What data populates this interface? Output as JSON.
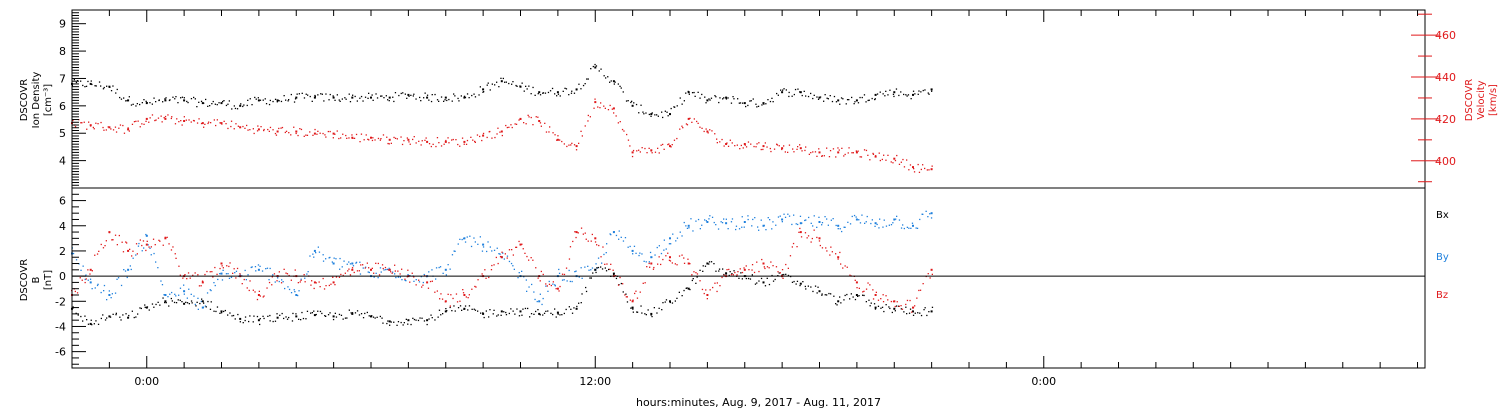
{
  "colors": {
    "black": "#000000",
    "red": "#e0191b",
    "blue": "#1f80dd"
  },
  "chart_data": [
    {
      "type": "scatter",
      "panel": "top",
      "ylabel": [
        "DSCOVR",
        "Ion Density",
        "[cm⁻³]"
      ],
      "y2label": [
        "DSCOVR",
        "Velocity",
        "[km/s]"
      ],
      "ylim": [
        3,
        9.5
      ],
      "y2lim": [
        387,
        472
      ],
      "yticks": [
        "4",
        "5",
        "6",
        "7",
        "8",
        "9"
      ],
      "y2ticks": [
        "400",
        "420",
        "440",
        "460"
      ],
      "series": [
        {
          "axis": "left",
          "color": "black",
          "x": [
            -2,
            -1.5,
            -1,
            -0.5,
            0,
            0.5,
            1,
            1.5,
            2,
            2.5,
            3,
            3.5,
            4,
            4.5,
            5,
            5.5,
            6,
            6.5,
            7,
            7.5,
            8,
            8.5,
            9,
            9.5,
            10,
            10.5,
            11,
            11.5,
            12,
            12.5,
            13,
            13.5,
            14,
            14.5,
            15,
            15.5,
            16,
            16.5,
            17,
            17.5,
            18,
            18.5,
            19,
            19.5,
            20,
            20.5,
            21
          ],
          "values": [
            6.8,
            6.8,
            6.7,
            6.2,
            6.1,
            6.2,
            6.2,
            6.1,
            6.1,
            6.0,
            6.2,
            6.2,
            6.3,
            6.3,
            6.3,
            6.3,
            6.3,
            6.3,
            6.4,
            6.3,
            6.3,
            6.3,
            6.6,
            6.9,
            6.7,
            6.5,
            6.5,
            6.6,
            7.4,
            6.9,
            6.0,
            5.7,
            5.7,
            6.5,
            6.2,
            6.3,
            6.1,
            6.1,
            6.5,
            6.5,
            6.3,
            6.2,
            6.2,
            6.4,
            6.5,
            6.4,
            6.6
          ]
        },
        {
          "axis": "right",
          "color": "red",
          "x": [
            -2,
            -1.5,
            -1,
            -0.5,
            0,
            0.5,
            1,
            1.5,
            2,
            2.5,
            3,
            3.5,
            4,
            4.5,
            5,
            5.5,
            6,
            6.5,
            7,
            7.5,
            8,
            8.5,
            9,
            9.5,
            10,
            10.5,
            11,
            11.5,
            12,
            12.5,
            13,
            13.5,
            14,
            14.5,
            15,
            15.5,
            16,
            16.5,
            17,
            17.5,
            18,
            18.5,
            19,
            19.5,
            20,
            20.5,
            21
          ],
          "values": [
            418,
            417,
            416,
            415,
            420,
            420,
            419,
            418,
            418,
            416,
            415,
            414,
            414,
            413,
            413,
            411,
            411,
            410,
            410,
            409,
            409,
            409,
            412,
            414,
            420,
            419,
            410,
            407,
            428,
            425,
            404,
            405,
            407,
            420,
            414,
            408,
            408,
            407,
            406,
            406,
            404,
            404,
            404,
            402,
            401,
            397,
            396
          ]
        }
      ]
    },
    {
      "type": "scatter",
      "panel": "bottom",
      "ylabel": [
        "DSCOVR",
        "B",
        "[nT]"
      ],
      "ylim": [
        -7.3,
        7
      ],
      "yticks": [
        "-6",
        "-4",
        "-2",
        "0",
        "2",
        "4",
        "6"
      ],
      "xlabel": "hours:minutes, Aug.  9, 2017 - Aug. 11, 2017",
      "xlim": [
        -2,
        34.2
      ],
      "xticks": [
        "0:00",
        "12:00",
        "0:00"
      ],
      "legend": [
        "Bx",
        "By",
        "Bz"
      ],
      "legend_position": "right",
      "series": [
        {
          "name": "Bx",
          "color": "black",
          "x": [
            -2,
            -1.5,
            -1,
            -0.5,
            0,
            0.5,
            1,
            1.5,
            2,
            2.5,
            3,
            3.5,
            4,
            4.5,
            5,
            5.5,
            6,
            6.5,
            7,
            7.5,
            8,
            8.5,
            9,
            9.5,
            10,
            10.5,
            11,
            11.5,
            12,
            12.5,
            13,
            13.5,
            14,
            14.5,
            15,
            15.5,
            16,
            16.5,
            17,
            17.5,
            18,
            18.5,
            19,
            19.5,
            20,
            20.5,
            21
          ],
          "values": [
            -2.6,
            -3.8,
            -3.2,
            -3.3,
            -2.5,
            -2.0,
            -2.2,
            -2.0,
            -2.8,
            -3.4,
            -3.5,
            -3.3,
            -3.2,
            -3.1,
            -3.2,
            -3.0,
            -3.2,
            -3.6,
            -3.5,
            -3.5,
            -2.8,
            -2.6,
            -3.0,
            -2.8,
            -2.8,
            -3.0,
            -2.9,
            -2.6,
            0.5,
            0.2,
            -2.5,
            -3.0,
            -2.0,
            -1.0,
            1.0,
            0.2,
            0.0,
            -0.5,
            0.0,
            -0.6,
            -1.2,
            -2.0,
            -1.5,
            -2.5,
            -2.6,
            -2.8,
            -2.8
          ]
        },
        {
          "name": "By",
          "color": "blue",
          "x": [
            -2,
            -1.5,
            -1,
            -0.5,
            0,
            0.5,
            1,
            1.5,
            2,
            2.5,
            3,
            3.5,
            4,
            4.5,
            5,
            5.5,
            6,
            6.5,
            7,
            7.5,
            8,
            8.5,
            9,
            9.5,
            10,
            10.5,
            11,
            11.5,
            12,
            12.5,
            13,
            13.5,
            14,
            14.5,
            15,
            15.5,
            16,
            16.5,
            17,
            17.5,
            18,
            18.5,
            19,
            19.5,
            20,
            20.5,
            21
          ],
          "values": [
            1.8,
            -0.5,
            -1.5,
            0.5,
            3.2,
            -1.5,
            -1.2,
            -2.5,
            0.2,
            0.0,
            0.5,
            0.0,
            -1.5,
            2.0,
            1.0,
            1.0,
            0.0,
            0.5,
            0.0,
            0.0,
            0.5,
            3.0,
            2.5,
            1.5,
            0.0,
            -2.0,
            0.0,
            0.0,
            0.5,
            3.5,
            2.0,
            1.5,
            3.0,
            4.0,
            4.3,
            4.2,
            4.3,
            4.0,
            4.5,
            4.2,
            4.3,
            4.0,
            4.5,
            4.2,
            4.5,
            4.0,
            5.0
          ]
        },
        {
          "name": "Bz",
          "color": "red",
          "x": [
            -2,
            -1.5,
            -1,
            -0.5,
            0,
            0.5,
            1,
            1.5,
            2,
            2.5,
            3,
            3.5,
            4,
            4.5,
            5,
            5.5,
            6,
            6.5,
            7,
            7.5,
            8,
            8.5,
            9,
            9.5,
            10,
            10.5,
            11,
            11.5,
            12,
            12.5,
            13,
            13.5,
            14,
            14.5,
            15,
            15.5,
            16,
            16.5,
            17,
            17.5,
            18,
            18.5,
            19,
            19.5,
            20,
            20.5,
            21
          ],
          "values": [
            -1.5,
            0.5,
            3.5,
            2.0,
            2.5,
            3.0,
            0.0,
            -0.5,
            1.0,
            0.0,
            -1.5,
            0.0,
            0.0,
            -0.5,
            -0.5,
            0.5,
            0.5,
            0.5,
            0.0,
            -0.5,
            -2.0,
            -1.5,
            0.0,
            1.5,
            2.5,
            0.0,
            -1.0,
            3.5,
            3.0,
            0.0,
            -2.0,
            1.0,
            1.5,
            1.0,
            -1.5,
            0.0,
            0.5,
            1.0,
            0.0,
            3.5,
            3.0,
            1.5,
            -0.5,
            -1.5,
            -2.0,
            -2.5,
            0.5
          ]
        }
      ]
    }
  ]
}
